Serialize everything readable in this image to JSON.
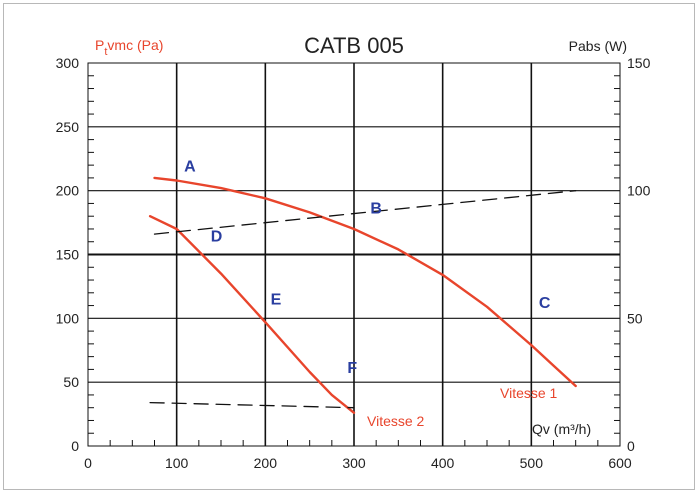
{
  "chart_data": {
    "type": "line",
    "title": "CATB 005",
    "y_left_label": {
      "main": "P",
      "sub": "t",
      "rest": "vmc (Pa)"
    },
    "y_right_label": "Pabs (W)",
    "xlabel": "Qv (m³/h)",
    "xlim": [
      0,
      600
    ],
    "ylim_left": [
      0,
      300
    ],
    "ylim_right": [
      0,
      150
    ],
    "x_ticks": [
      "0",
      "100",
      "200",
      "300",
      "400",
      "500",
      "600"
    ],
    "y_left_ticks": [
      "0",
      "50",
      "100",
      "150",
      "200",
      "250",
      "300"
    ],
    "y_right_ticks": [
      "0",
      "50",
      "100",
      "150"
    ],
    "grid": true,
    "series": [
      {
        "name": "Vitesse 1",
        "axis": "left",
        "style": "solid",
        "color": "#e8452c",
        "x": [
          75,
          100,
          150,
          200,
          250,
          300,
          350,
          400,
          450,
          500,
          525,
          550
        ],
        "y": [
          210,
          208,
          202,
          194,
          183,
          170,
          154,
          134,
          109,
          79,
          63,
          47
        ]
      },
      {
        "name": "Vitesse 2",
        "axis": "left",
        "style": "solid",
        "color": "#e8452c",
        "x": [
          70,
          100,
          150,
          200,
          250,
          275,
          300
        ],
        "y": [
          180,
          170,
          135,
          97,
          58,
          40,
          26
        ]
      },
      {
        "axis": "right",
        "style": "dashed",
        "color": "#111111",
        "x": [
          75,
          550
        ],
        "y": [
          83,
          100
        ]
      },
      {
        "axis": "right",
        "style": "dashed",
        "color": "#111111",
        "x": [
          70,
          300
        ],
        "y": [
          17,
          15
        ]
      }
    ],
    "points": [
      {
        "label": "A",
        "x": 115,
        "y": 215
      },
      {
        "label": "B",
        "x": 325,
        "y": 182
      },
      {
        "label": "C",
        "x": 515,
        "y": 108
      },
      {
        "label": "D",
        "x": 145,
        "y": 160
      },
      {
        "label": "E",
        "x": 212,
        "y": 111
      },
      {
        "label": "F",
        "x": 298,
        "y": 57
      }
    ],
    "colors": {
      "curve": "#e8452c",
      "point_label": "#2a3ea0",
      "axis_label": "#e8452c"
    }
  }
}
